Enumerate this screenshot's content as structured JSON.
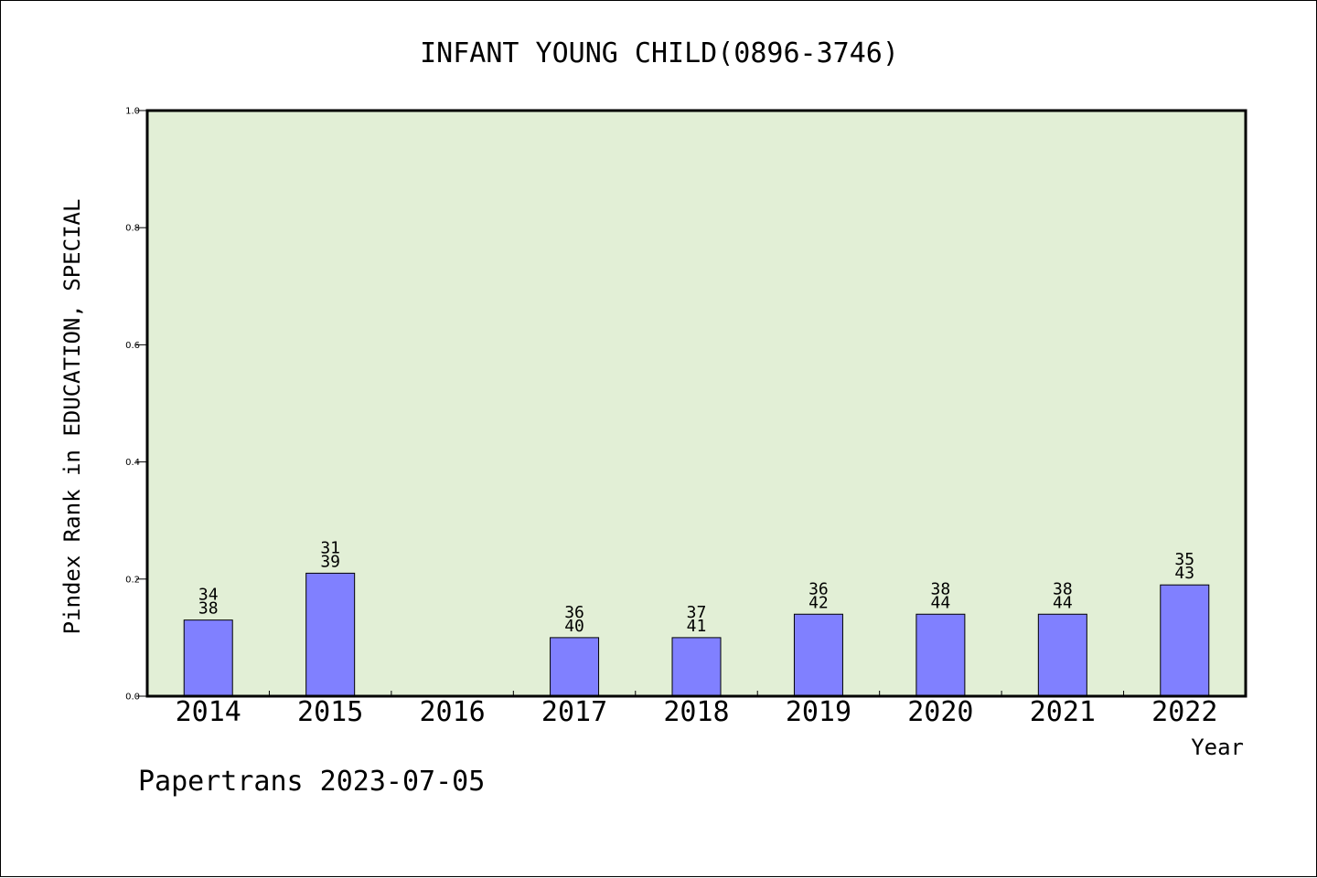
{
  "chart_data": {
    "type": "bar",
    "title": "INFANT YOUNG CHILD(0896-3746)",
    "xlabel": "Year",
    "ylabel": "Pindex Rank in EDUCATION, SPECIAL",
    "categories": [
      "2014",
      "2015",
      "2016",
      "2017",
      "2018",
      "2019",
      "2020",
      "2021",
      "2022"
    ],
    "values": [
      0.13,
      0.21,
      null,
      0.1,
      0.1,
      0.14,
      0.14,
      0.14,
      0.19
    ],
    "label_top": [
      "34",
      "31",
      "",
      "36",
      "37",
      "36",
      "38",
      "38",
      "35"
    ],
    "label_bottom": [
      "38",
      "39",
      "",
      "40",
      "41",
      "42",
      "44",
      "44",
      "43"
    ],
    "ylim": [
      0.0,
      1.0
    ],
    "yticks": [
      "0.0",
      "0.2",
      "0.4",
      "0.6",
      "0.8",
      "1.0"
    ],
    "grid": false,
    "colors": {
      "bar": "#8080ff",
      "plot_background": "#e2efd6",
      "axis": "#000000"
    }
  },
  "footer": {
    "credit": "Papertrans 2023-07-05"
  }
}
